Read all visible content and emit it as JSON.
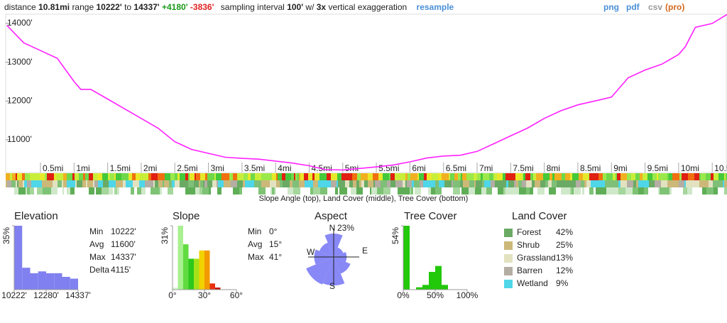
{
  "header": {
    "t1": "distance",
    "distance": "10.81mi",
    "t2": "range",
    "min": "10222'",
    "t3": "to",
    "max": "14337'",
    "gain": "+4180'",
    "loss": "-3836'",
    "t4": "sampling interval",
    "interval": "100'",
    "t5": "w/",
    "exaggeration": "3x",
    "t6": "vertical exaggeration",
    "resample": "resample",
    "png": "png",
    "pdf": "pdf",
    "csv": "csv",
    "pro": "(pro)"
  },
  "profile": {
    "type": "line",
    "color": "#ff22ff",
    "x": [
      0,
      0.25,
      0.5,
      0.75,
      1.0,
      1.1,
      1.25,
      1.5,
      1.75,
      2.0,
      2.25,
      2.5,
      2.75,
      3.0,
      3.25,
      3.5,
      3.75,
      4.0,
      4.25,
      4.5,
      4.75,
      5.0,
      5.25,
      5.5,
      5.75,
      6.0,
      6.25,
      6.5,
      6.75,
      7.0,
      7.25,
      7.5,
      7.75,
      8.0,
      8.25,
      8.5,
      8.75,
      9.0,
      9.1,
      9.25,
      9.5,
      9.75,
      10.0,
      10.1,
      10.25,
      10.5,
      10.72
    ],
    "values": [
      13950,
      13500,
      13300,
      13100,
      12500,
      12300,
      12300,
      12050,
      11800,
      11550,
      11300,
      10950,
      10750,
      10650,
      10550,
      10520,
      10500,
      10450,
      10400,
      10330,
      10230,
      10222,
      10260,
      10300,
      10350,
      10430,
      10530,
      10580,
      10600,
      10700,
      10900,
      11100,
      11300,
      11550,
      11750,
      11900,
      12000,
      12100,
      12300,
      12600,
      12800,
      12950,
      13200,
      13400,
      13900,
      14000,
      14230
    ],
    "xlim": [
      0,
      10.72
    ],
    "ylim": [
      10156,
      14238
    ],
    "yticks": [
      {
        "value": 11000,
        "label": "11000'"
      },
      {
        "value": 12000,
        "label": "12000'"
      },
      {
        "value": 13000,
        "label": "13000'"
      },
      {
        "value": 14000,
        "label": "14000'"
      }
    ],
    "xticks": [
      {
        "value": 0.5,
        "label": "0.5mi"
      },
      {
        "value": 1,
        "label": "1mi"
      },
      {
        "value": 1.5,
        "label": "1.5mi"
      },
      {
        "value": 2,
        "label": "2mi"
      },
      {
        "value": 2.5,
        "label": "2.5mi"
      },
      {
        "value": 3,
        "label": "3mi"
      },
      {
        "value": 3.5,
        "label": "3.5mi"
      },
      {
        "value": 4,
        "label": "4mi"
      },
      {
        "value": 4.5,
        "label": "4.5mi"
      },
      {
        "value": 5,
        "label": "5mi"
      },
      {
        "value": 5.5,
        "label": "5.5mi"
      },
      {
        "value": 6,
        "label": "6mi"
      },
      {
        "value": 6.5,
        "label": "6.5mi"
      },
      {
        "value": 7,
        "label": "7mi"
      },
      {
        "value": 7.5,
        "label": "7.5mi"
      },
      {
        "value": 8,
        "label": "8mi"
      },
      {
        "value": 8.5,
        "label": "8.5mi"
      },
      {
        "value": 9,
        "label": "9mi"
      },
      {
        "value": 9.5,
        "label": "9.5mi"
      },
      {
        "value": 10,
        "label": "10mi"
      },
      {
        "value": 10.5,
        "label": "10.5"
      }
    ],
    "strip_caption": "Slope Angle (top), Land Cover (middle), Tree Cover (bottom)"
  },
  "elevation": {
    "title": "Elevation",
    "type": "histogram",
    "color": "#8080f0",
    "bins": [
      10222,
      10736,
      11251,
      11765,
      12280,
      12794,
      13308,
      13823,
      14337
    ],
    "values": [
      35,
      12,
      9,
      10,
      9,
      9,
      7,
      6
    ],
    "xlim": [
      10222,
      14337
    ],
    "ylim": [
      0,
      35
    ],
    "yticks": [
      {
        "value": 35,
        "label": "35%"
      }
    ],
    "xticks": [
      {
        "value": 10222,
        "label": "10222'"
      },
      {
        "value": 12280,
        "label": "12280'"
      },
      {
        "value": 14337,
        "label": "14337'"
      }
    ],
    "stats": [
      {
        "label": "Min",
        "value": "10222'"
      },
      {
        "label": "Avg",
        "value": "11600'"
      },
      {
        "label": "Max",
        "value": "14337'"
      },
      {
        "label": "Delta",
        "value": "4115'"
      }
    ]
  },
  "slope": {
    "title": "Slope",
    "type": "histogram",
    "colors": [
      "#d6f7cf",
      "#a8f090",
      "#60dc40",
      "#2cc81c",
      "#a6e21a",
      "#f2d200",
      "#f29a00",
      "#e83010",
      "#c01000"
    ],
    "bins": [
      0,
      5,
      10,
      15,
      20,
      25,
      30,
      35,
      40,
      45
    ],
    "values": [
      1,
      31,
      22,
      15,
      15,
      19,
      19,
      3,
      1
    ],
    "xlim": [
      0,
      60
    ],
    "ylim": [
      0,
      31
    ],
    "yticks": [
      {
        "value": 31,
        "label": "31%"
      }
    ],
    "xticks": [
      {
        "value": 0,
        "label": "0°"
      },
      {
        "value": 30,
        "label": "30°"
      },
      {
        "value": 60,
        "label": "60°"
      }
    ],
    "stats": [
      {
        "label": "Min",
        "value": "0°"
      },
      {
        "label": "Avg",
        "value": "15°"
      },
      {
        "label": "Max",
        "value": "41°"
      }
    ]
  },
  "aspect": {
    "title": "Aspect",
    "type": "rose",
    "color": "#7b7bf5",
    "values": [
      18,
      8,
      10,
      14,
      22,
      23,
      15,
      12
    ],
    "labels": [
      "N",
      "E",
      "S",
      "W"
    ],
    "rlim": [
      0,
      23
    ],
    "rticks": [
      {
        "value": 23,
        "label": "23%"
      }
    ]
  },
  "tree": {
    "title": "Tree Cover",
    "type": "histogram",
    "color": "#22c80a",
    "bins": [
      0,
      10,
      20,
      30,
      40,
      50,
      60,
      70,
      80,
      90,
      100
    ],
    "values": [
      54,
      0,
      2,
      4,
      15,
      20,
      4,
      0,
      0,
      0
    ],
    "xlim": [
      0,
      100
    ],
    "ylim": [
      0,
      54
    ],
    "yticks": [
      {
        "value": 54,
        "label": "54%"
      }
    ],
    "xticks": [
      {
        "value": 0,
        "label": "0%"
      },
      {
        "value": 50,
        "label": "50%"
      },
      {
        "value": 100,
        "label": "100%"
      }
    ]
  },
  "landcover": {
    "title": "Land Cover",
    "items": [
      {
        "name": "Forest",
        "value": 42,
        "value_label": "42%",
        "color": "#6aaa64"
      },
      {
        "name": "Shrub",
        "value": 25,
        "value_label": "25%",
        "color": "#ccb879"
      },
      {
        "name": "Grassland",
        "value": 13,
        "value_label": "13%",
        "color": "#e2e2c1"
      },
      {
        "name": "Barren",
        "value": 12,
        "value_label": "12%",
        "color": "#b3ada3"
      },
      {
        "name": "Wetland",
        "value": 9,
        "value_label": "9%",
        "color": "#4fd6e8"
      }
    ]
  }
}
